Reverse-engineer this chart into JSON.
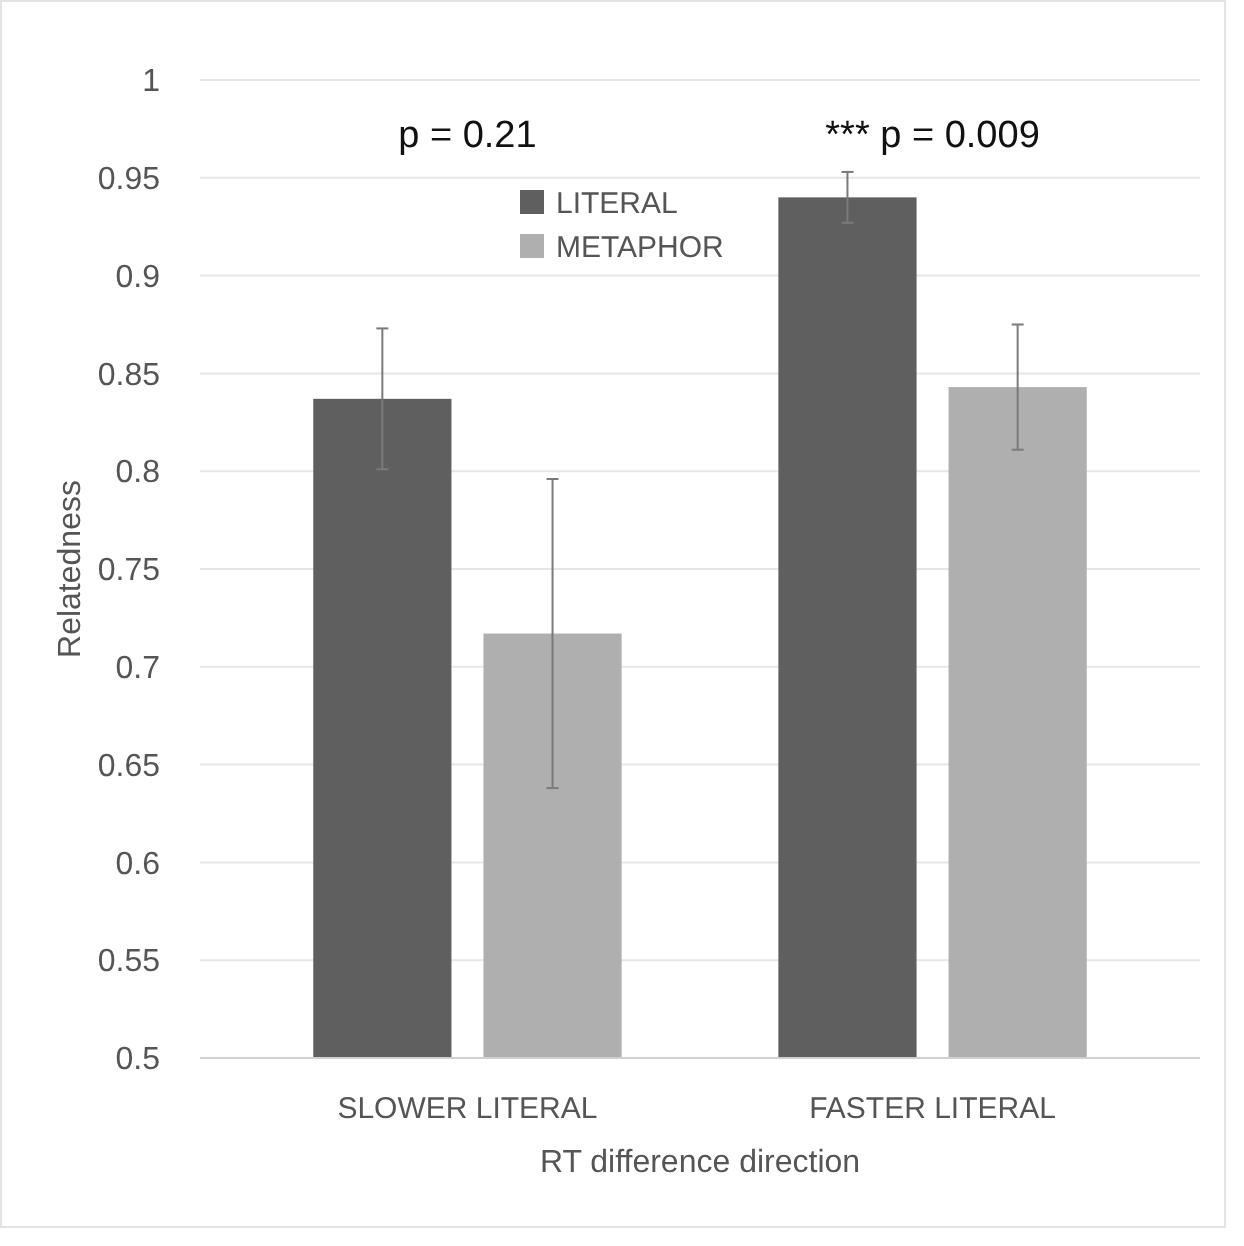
{
  "chart_data": {
    "type": "bar",
    "ylabel": "Relatedness",
    "xlabel": "RT difference direction",
    "categories": [
      "SLOWER LITERAL",
      "FASTER LITERAL"
    ],
    "series": [
      {
        "name": "LITERAL",
        "color": "#5f5f5f",
        "values": [
          0.837,
          0.94
        ],
        "errors": [
          0.036,
          0.013
        ]
      },
      {
        "name": "METAPHOR",
        "color": "#afafaf",
        "values": [
          0.717,
          0.843
        ],
        "errors": [
          0.079,
          0.032
        ]
      }
    ],
    "ylim": [
      0.5,
      1
    ],
    "yticks": [
      0.5,
      0.55,
      0.6,
      0.65,
      0.7,
      0.75,
      0.8,
      0.85,
      0.9,
      0.95,
      1
    ],
    "grid": "y",
    "legend": "top",
    "annotations": [
      "p = 0.21",
      "*** p = 0.009"
    ]
  }
}
